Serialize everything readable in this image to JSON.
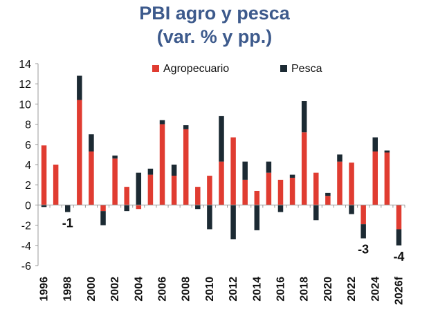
{
  "chart_data": {
    "type": "bar",
    "stacked": true,
    "title": [
      "PBI agro y pesca",
      "(var. % y pp.)"
    ],
    "xlabel": "",
    "ylabel": "",
    "ylim": [
      -6,
      14
    ],
    "yticks": [
      -6,
      -4,
      -2,
      0,
      2,
      4,
      6,
      8,
      10,
      12,
      14
    ],
    "grid": false,
    "legend_position": "top-right",
    "categories": [
      "1996",
      "1997",
      "1998",
      "1999",
      "2000",
      "2001",
      "2002",
      "2003",
      "2004",
      "2005",
      "2006",
      "2007",
      "2008",
      "2009",
      "2010",
      "2011",
      "2012",
      "2013",
      "2014",
      "2015",
      "2016",
      "2017",
      "2018",
      "2019",
      "2020",
      "2021",
      "2022",
      "2023",
      "2024",
      "2025",
      "2026f"
    ],
    "xtick_labels": [
      "1996",
      "1998",
      "2000",
      "2002",
      "2004",
      "2006",
      "2008",
      "2010",
      "2012",
      "2014",
      "2016",
      "2018",
      "2020",
      "2022",
      "2024",
      "2026f"
    ],
    "series": [
      {
        "name": "Agropecuario",
        "color": "#e03c31",
        "values": [
          5.9,
          4.0,
          0.0,
          10.4,
          5.3,
          -0.6,
          4.6,
          1.8,
          -0.4,
          3.0,
          8.0,
          2.9,
          7.5,
          1.8,
          2.9,
          4.3,
          6.7,
          2.5,
          1.4,
          3.2,
          2.5,
          2.7,
          7.2,
          3.2,
          0.9,
          4.3,
          4.2,
          -1.9,
          5.3,
          5.2,
          -2.4
        ]
      },
      {
        "name": "Pesca",
        "color": "#1c2a33",
        "values": [
          -0.2,
          0.0,
          -0.7,
          2.4,
          1.7,
          -1.4,
          0.3,
          -0.6,
          3.2,
          0.6,
          0.4,
          1.1,
          0.4,
          -0.4,
          -2.4,
          4.5,
          -3.4,
          1.8,
          -2.5,
          1.1,
          -0.7,
          0.3,
          3.1,
          -1.5,
          0.3,
          0.7,
          -0.9,
          -1.4,
          1.4,
          0.2,
          -1.6
        ]
      }
    ],
    "annotations": [
      {
        "category": "1998",
        "text": "-1"
      },
      {
        "category": "2023",
        "text": "-3"
      },
      {
        "category": "2026f",
        "text": "-4"
      }
    ]
  }
}
